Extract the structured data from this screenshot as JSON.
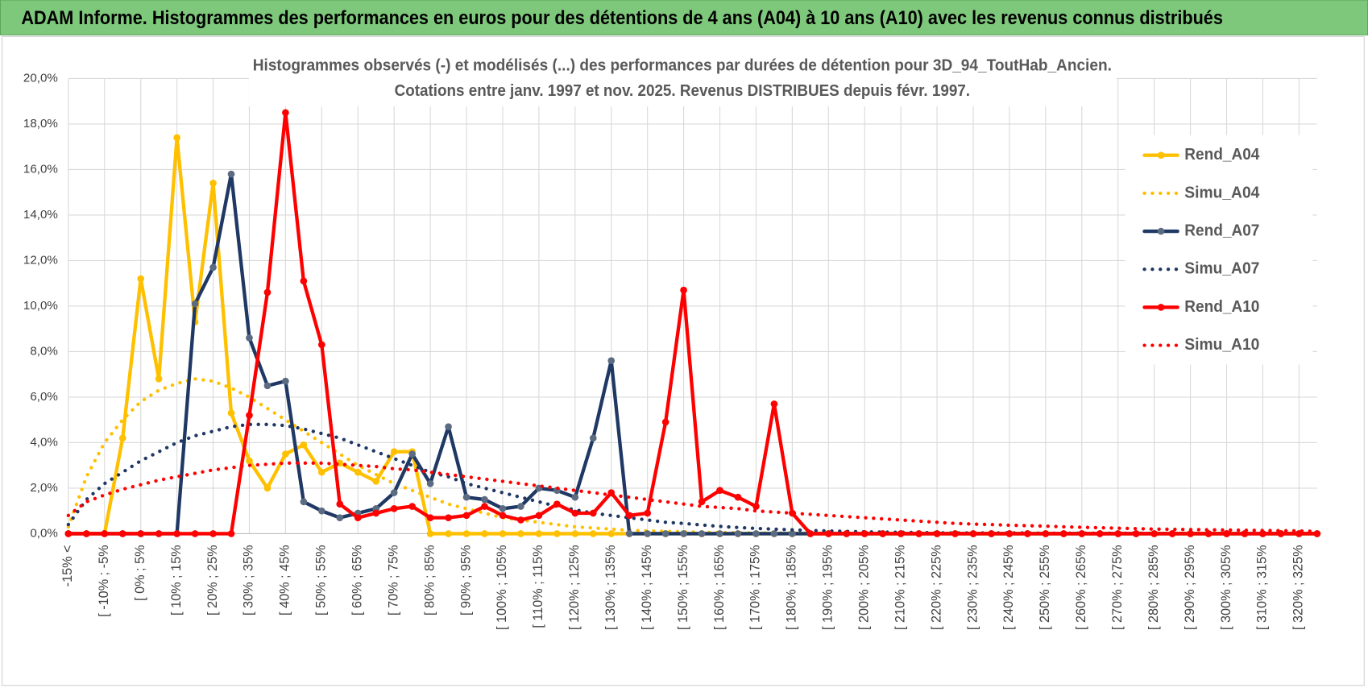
{
  "header_title": "ADAM Informe. Histogrammes des performances en euros pour des détentions de 4 ans (A04) à 10 ans (A10) avec les revenus connus distribués",
  "chart_data": {
    "type": "line",
    "title_lines": [
      "Histogrammes observés (-) et modélisés (...) des performances par durées de détention pour 3D_94_ToutHab_Ancien.",
      "Cotations entre janv. 1997 et nov. 2025. Revenus DISTRIBUES depuis févr. 1997."
    ],
    "categories": [
      "-15% <",
      null,
      "[ -10% ; -5%",
      null,
      "[ 0% ; 5%",
      null,
      "[ 10% ; 15%",
      null,
      "[ 20% ; 25%",
      null,
      "[ 30% ; 35%",
      null,
      "[ 40% ; 45%",
      null,
      "[ 50% ; 55%",
      null,
      "[ 60% ; 65%",
      null,
      "[ 70% ; 75%",
      null,
      "[ 80% ; 85%",
      null,
      "[ 90% ; 95%",
      null,
      "[ 100% ; 105%",
      null,
      "[ 110% ; 115%",
      null,
      "[ 120% ; 125%",
      null,
      "[ 130% ; 135%",
      null,
      "[ 140% ; 145%",
      null,
      "[ 150% ; 155%",
      null,
      "[ 160% ; 165%",
      null,
      "[ 170% ; 175%",
      null,
      "[ 180% ; 185%",
      null,
      "[ 190% ; 195%",
      null,
      "[ 200% ; 205%",
      null,
      "[ 210% ; 215%",
      null,
      "[ 220% ; 225%",
      null,
      "[ 230% ; 235%",
      null,
      "[ 240% ; 245%",
      null,
      "[ 250% ; 255%",
      null,
      "[ 260% ; 265%",
      null,
      "[ 270% ; 275%",
      null,
      "[ 280% ; 285%",
      null,
      "[ 290% ; 295%",
      null,
      "[ 300% ; 305%",
      null,
      "[ 310% ; 315%",
      null,
      "[ 320% ; 325%",
      null
    ],
    "ylim": [
      0,
      20
    ],
    "yticks": [
      {
        "value": 0,
        "label": "0,0%"
      },
      {
        "value": 2,
        "label": "2,0%"
      },
      {
        "value": 4,
        "label": "4,0%"
      },
      {
        "value": 6,
        "label": "6,0%"
      },
      {
        "value": 8,
        "label": "8,0%"
      },
      {
        "value": 10,
        "label": "10,0%"
      },
      {
        "value": 12,
        "label": "12,0%"
      },
      {
        "value": 14,
        "label": "14,0%"
      },
      {
        "value": 16,
        "label": "16,0%"
      },
      {
        "value": 18,
        "label": "18,0%"
      },
      {
        "value": 20,
        "label": "20,0%"
      }
    ],
    "grid": true,
    "legend": "right",
    "series": [
      {
        "name": "Rend_A04",
        "color": "#ffc000",
        "style": "solid",
        "markers": true,
        "marker_color": "#ffc000",
        "values": [
          0,
          0,
          0,
          4.2,
          11.2,
          6.8,
          17.4,
          9.3,
          15.4,
          5.3,
          3.2,
          2.0,
          3.5,
          3.9,
          2.7,
          3.1,
          2.7,
          2.3,
          3.6,
          3.6,
          0,
          0,
          0,
          0,
          0,
          0,
          0,
          0,
          0,
          0,
          0,
          0,
          0,
          0,
          0,
          0,
          0,
          0,
          0,
          0,
          0,
          0,
          0,
          0,
          0,
          0,
          0,
          0,
          0,
          0,
          0,
          0,
          0,
          0,
          0,
          0,
          0,
          0,
          0,
          0,
          0,
          0,
          0,
          0,
          0,
          0,
          0,
          0,
          0,
          0
        ]
      },
      {
        "name": "Simu_A04",
        "color": "#ffc000",
        "style": "dotted",
        "markers": false,
        "values": [
          0.3,
          2.5,
          4.0,
          5.0,
          5.8,
          6.3,
          6.6,
          6.8,
          6.7,
          6.4,
          6.0,
          5.5,
          5.0,
          4.5,
          4.0,
          3.5,
          3.0,
          2.6,
          2.2,
          1.9,
          1.6,
          1.3,
          1.1,
          0.9,
          0.7,
          0.6,
          0.5,
          0.4,
          0.3,
          0.25,
          0.2,
          0.15,
          0.12,
          0.1,
          0.08,
          0.06,
          0.05,
          0.04,
          0.03,
          0.03,
          0.02,
          0.02,
          0.02,
          0.01,
          0.01,
          0,
          0,
          0,
          0,
          0,
          0,
          0,
          0,
          0,
          0,
          0,
          0,
          0,
          0,
          0,
          0,
          0,
          0,
          0,
          0,
          0,
          0,
          0,
          0,
          0
        ]
      },
      {
        "name": "Rend_A07",
        "color": "#1f3864",
        "style": "solid",
        "markers": true,
        "marker_color": "#5b6b82",
        "values": [
          0,
          0,
          0,
          0,
          0,
          0,
          0,
          10.1,
          11.7,
          15.8,
          8.6,
          6.5,
          6.7,
          1.4,
          1.0,
          0.7,
          0.9,
          1.1,
          1.8,
          3.5,
          2.2,
          4.7,
          1.6,
          1.5,
          1.1,
          1.2,
          2.0,
          1.9,
          1.6,
          4.2,
          7.6,
          0,
          0,
          0,
          0,
          0,
          0,
          0,
          0,
          0,
          0,
          0,
          0,
          0,
          0,
          0,
          0,
          0,
          0,
          0,
          0,
          0,
          0,
          0,
          0,
          0,
          0,
          0,
          0,
          0,
          0,
          0,
          0,
          0,
          0,
          0,
          0,
          0,
          0,
          0
        ]
      },
      {
        "name": "Simu_A07",
        "color": "#1f3864",
        "style": "dotted",
        "markers": false,
        "values": [
          0.4,
          1.5,
          2.2,
          2.7,
          3.2,
          3.6,
          4.0,
          4.3,
          4.5,
          4.7,
          4.8,
          4.8,
          4.75,
          4.6,
          4.4,
          4.2,
          3.9,
          3.6,
          3.3,
          3.0,
          2.7,
          2.5,
          2.2,
          2.0,
          1.8,
          1.6,
          1.4,
          1.2,
          1.05,
          0.9,
          0.8,
          0.7,
          0.6,
          0.5,
          0.45,
          0.38,
          0.32,
          0.27,
          0.23,
          0.2,
          0.17,
          0.14,
          0.12,
          0.1,
          0.08,
          0.07,
          0.06,
          0.05,
          0.04,
          0.03,
          0.03,
          0.03,
          0.03,
          0.03,
          0.02,
          0.02,
          0.02,
          0.02,
          0.02,
          0.02,
          0.01,
          0.01,
          0.01,
          0.01,
          0.01,
          0.01,
          0.01,
          0.01,
          0.01,
          0.01
        ]
      },
      {
        "name": "Rend_A10",
        "color": "#ff0000",
        "style": "solid",
        "markers": true,
        "marker_color": "#ff0000",
        "values": [
          0,
          0,
          0,
          0,
          0,
          0,
          0,
          0,
          0,
          0,
          5.2,
          10.6,
          18.5,
          11.1,
          8.3,
          1.3,
          0.7,
          0.9,
          1.1,
          1.2,
          0.7,
          0.7,
          0.8,
          1.2,
          0.8,
          0.6,
          0.8,
          1.3,
          0.9,
          0.9,
          1.8,
          0.8,
          0.9,
          4.9,
          10.7,
          1.4,
          1.9,
          1.6,
          1.2,
          5.7,
          0.9,
          0,
          0,
          0,
          0,
          0,
          0,
          0,
          0,
          0,
          0,
          0,
          0,
          0,
          0,
          0,
          0,
          0,
          0,
          0,
          0,
          0,
          0,
          0,
          0,
          0,
          0,
          0,
          0,
          0
        ]
      },
      {
        "name": "Simu_A10",
        "color": "#ff0000",
        "style": "dotted",
        "markers": false,
        "values": [
          0.8,
          1.4,
          1.7,
          1.95,
          2.15,
          2.35,
          2.5,
          2.65,
          2.8,
          2.9,
          3.0,
          3.05,
          3.1,
          3.1,
          3.1,
          3.05,
          3.0,
          2.95,
          2.85,
          2.8,
          2.7,
          2.6,
          2.5,
          2.4,
          2.3,
          2.2,
          2.1,
          2.0,
          1.9,
          1.8,
          1.7,
          1.6,
          1.5,
          1.4,
          1.3,
          1.2,
          1.15,
          1.1,
          1.0,
          0.95,
          0.9,
          0.85,
          0.8,
          0.75,
          0.7,
          0.65,
          0.6,
          0.55,
          0.5,
          0.45,
          0.42,
          0.4,
          0.37,
          0.35,
          0.33,
          0.3,
          0.28,
          0.26,
          0.24,
          0.22,
          0.2,
          0.19,
          0.18,
          0.17,
          0.16,
          0.15,
          0.14,
          0.13,
          0.12,
          0.1
        ]
      }
    ]
  }
}
